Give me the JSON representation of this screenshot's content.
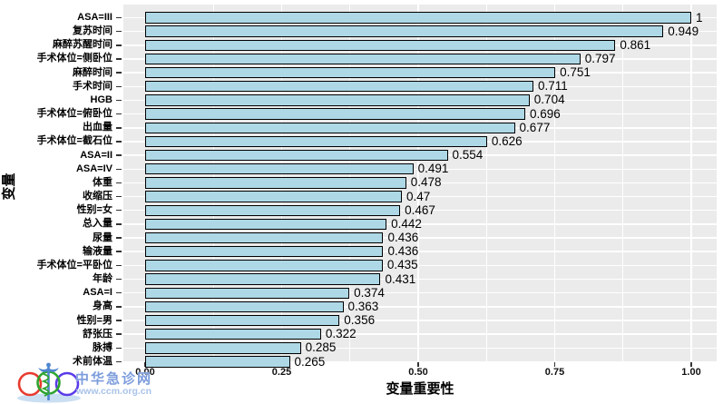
{
  "axes": {
    "x_title": "变量重要性",
    "y_title": "变量"
  },
  "chart_data": {
    "type": "bar",
    "orientation": "horizontal",
    "title": "",
    "xlabel": "变量重要性",
    "ylabel": "变量",
    "xlim": [
      0,
      1
    ],
    "grid": true,
    "legend": "none",
    "x_ticks": [
      "0.00",
      "0.25",
      "0.50",
      "0.75",
      "1.00"
    ],
    "x_tick_values": [
      0,
      0.25,
      0.5,
      0.75,
      1.0
    ],
    "categories": [
      "ASA=III",
      "复苏时间",
      "麻醉苏醒时间",
      "手术体位=侧卧位",
      "麻醉时间",
      "手术时间",
      "HGB",
      "手术体位=俯卧位",
      "出血量",
      "手术体位=截石位",
      "ASA=II",
      "ASA=IV",
      "体重",
      "收缩压",
      "性别=女",
      "总入量",
      "尿量",
      "输液量",
      "手术体位=平卧位",
      "年龄",
      "ASA=I",
      "身高",
      "性别=男",
      "舒张压",
      "脉搏",
      "术前体温"
    ],
    "values": [
      1,
      0.949,
      0.861,
      0.797,
      0.751,
      0.711,
      0.704,
      0.696,
      0.677,
      0.626,
      0.554,
      0.491,
      0.478,
      0.47,
      0.467,
      0.442,
      0.436,
      0.436,
      0.435,
      0.431,
      0.374,
      0.363,
      0.356,
      0.322,
      0.285,
      0.265
    ],
    "value_labels": [
      "1",
      "0.949",
      "0.861",
      "0.797",
      "0.751",
      "0.711",
      "0.704",
      "0.696",
      "0.677",
      "0.626",
      "0.554",
      "0.491",
      "0.478",
      "0.47",
      "0.467",
      "0.442",
      "0.436",
      "0.436",
      "0.435",
      "0.431",
      "0.374",
      "0.363",
      "0.356",
      "0.322",
      "0.285",
      "0.265"
    ],
    "colors": {
      "bar_fill": "#AED8E6",
      "bar_border": "#000000",
      "panel_background": "#EBEBEB",
      "gridline": "#FFFFFF",
      "text": "#000000"
    }
  },
  "watermark": {
    "site_name": "中华急诊网",
    "site_url": "www.ccm.org.cn",
    "name_color": "#7C9CDC",
    "url_color": "#A9C3E8"
  }
}
